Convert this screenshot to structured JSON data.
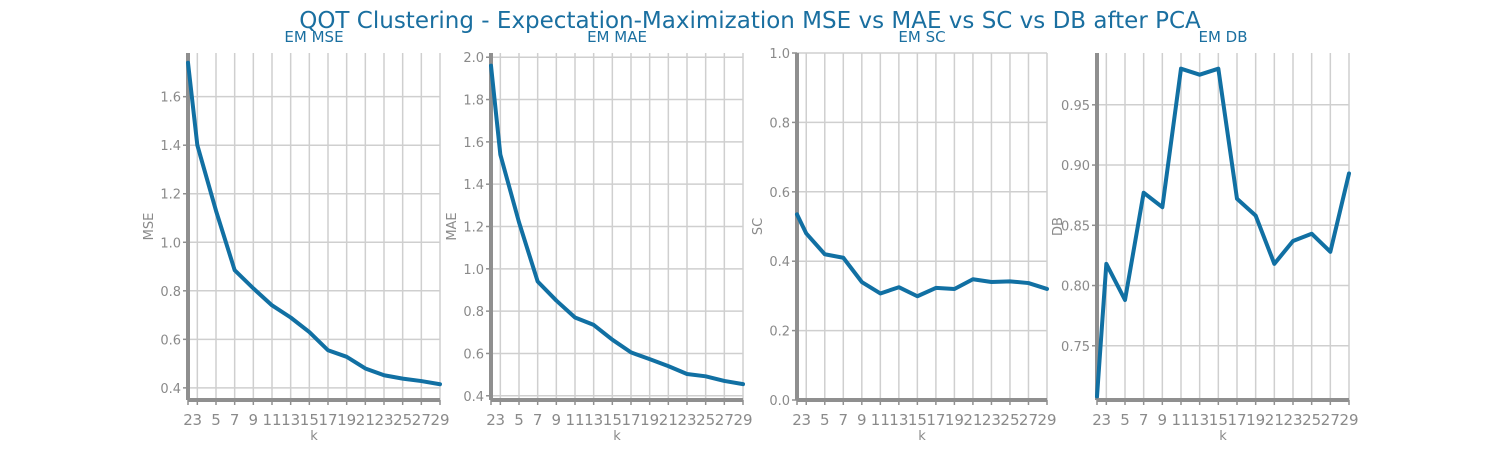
{
  "figure": {
    "title": "QOT Clustering - Expectation-Maximization MSE vs MAE vs SC vs DB after PCA"
  },
  "colors": {
    "series": "#1170a3",
    "title": "#1a6fa0",
    "text": "#8a8a8a",
    "grid": "#cfcfcf",
    "spine": "#8f8f8f"
  },
  "chart_data": [
    {
      "type": "line",
      "title": "EM MSE",
      "xlabel": "k",
      "ylabel": "MSE",
      "x": [
        2,
        3,
        5,
        7,
        9,
        11,
        13,
        15,
        17,
        19,
        21,
        23,
        25,
        27,
        29
      ],
      "x_ticks": [
        "2",
        "3",
        "5",
        "7",
        "9",
        "11",
        "13",
        "15",
        "17",
        "19",
        "21",
        "23",
        "25",
        "27",
        "29"
      ],
      "y_ticks": [
        "0.4",
        "0.6",
        "0.8",
        "1.0",
        "1.2",
        "1.4",
        "1.6"
      ],
      "xlim": [
        2,
        29
      ],
      "ylim": [
        0.35,
        1.78
      ],
      "grid": true,
      "series": [
        {
          "values": [
            1.74,
            1.4,
            1.13,
            0.885,
            0.81,
            0.74,
            0.69,
            0.63,
            0.555,
            0.528,
            0.48,
            0.452,
            0.438,
            0.428,
            0.415
          ]
        }
      ]
    },
    {
      "type": "line",
      "title": "EM MAE",
      "xlabel": "k",
      "ylabel": "MAE",
      "x": [
        2,
        3,
        5,
        7,
        9,
        11,
        13,
        15,
        17,
        19,
        21,
        23,
        25,
        27,
        29
      ],
      "x_ticks": [
        "2",
        "3",
        "5",
        "7",
        "9",
        "11",
        "13",
        "15",
        "17",
        "19",
        "21",
        "23",
        "25",
        "27",
        "29"
      ],
      "y_ticks": [
        "0.4",
        "0.6",
        "0.8",
        "1.0",
        "1.2",
        "1.4",
        "1.6",
        "1.8",
        "2.0"
      ],
      "xlim": [
        2,
        29
      ],
      "ylim": [
        0.38,
        2.02
      ],
      "grid": true,
      "series": [
        {
          "values": [
            1.96,
            1.54,
            1.22,
            0.94,
            0.85,
            0.77,
            0.735,
            0.665,
            0.605,
            0.573,
            0.54,
            0.503,
            0.492,
            0.47,
            0.455
          ]
        }
      ]
    },
    {
      "type": "line",
      "title": "EM SC",
      "xlabel": "k",
      "ylabel": "SC",
      "x": [
        2,
        3,
        5,
        7,
        9,
        11,
        13,
        15,
        17,
        19,
        21,
        23,
        25,
        27,
        29
      ],
      "x_ticks": [
        "2",
        "3",
        "5",
        "7",
        "9",
        "11",
        "13",
        "15",
        "17",
        "19",
        "21",
        "23",
        "25",
        "27",
        "29"
      ],
      "y_ticks": [
        "0.0",
        "0.2",
        "0.4",
        "0.6",
        "0.8",
        "1.0"
      ],
      "xlim": [
        2,
        29
      ],
      "ylim": [
        0,
        1
      ],
      "grid": true,
      "series": [
        {
          "values": [
            0.535,
            0.48,
            0.42,
            0.41,
            0.34,
            0.307,
            0.325,
            0.299,
            0.323,
            0.32,
            0.348,
            0.34,
            0.342,
            0.337,
            0.32
          ]
        }
      ]
    },
    {
      "type": "line",
      "title": "EM DB",
      "xlabel": "k",
      "ylabel": "DB",
      "x": [
        2,
        3,
        5,
        7,
        9,
        11,
        13,
        15,
        17,
        19,
        21,
        23,
        25,
        27,
        29
      ],
      "x_ticks": [
        "2",
        "3",
        "5",
        "7",
        "9",
        "11",
        "13",
        "15",
        "17",
        "19",
        "21",
        "23",
        "25",
        "27",
        "29"
      ],
      "y_ticks": [
        "0.75",
        "0.80",
        "0.85",
        "0.90",
        "0.95"
      ],
      "xlim": [
        2,
        29
      ],
      "ylim": [
        0.705,
        0.993
      ],
      "grid": true,
      "series": [
        {
          "values": [
            0.708,
            0.818,
            0.788,
            0.877,
            0.865,
            0.98,
            0.975,
            0.98,
            0.872,
            0.858,
            0.818,
            0.837,
            0.843,
            0.828,
            0.893
          ]
        }
      ]
    }
  ]
}
